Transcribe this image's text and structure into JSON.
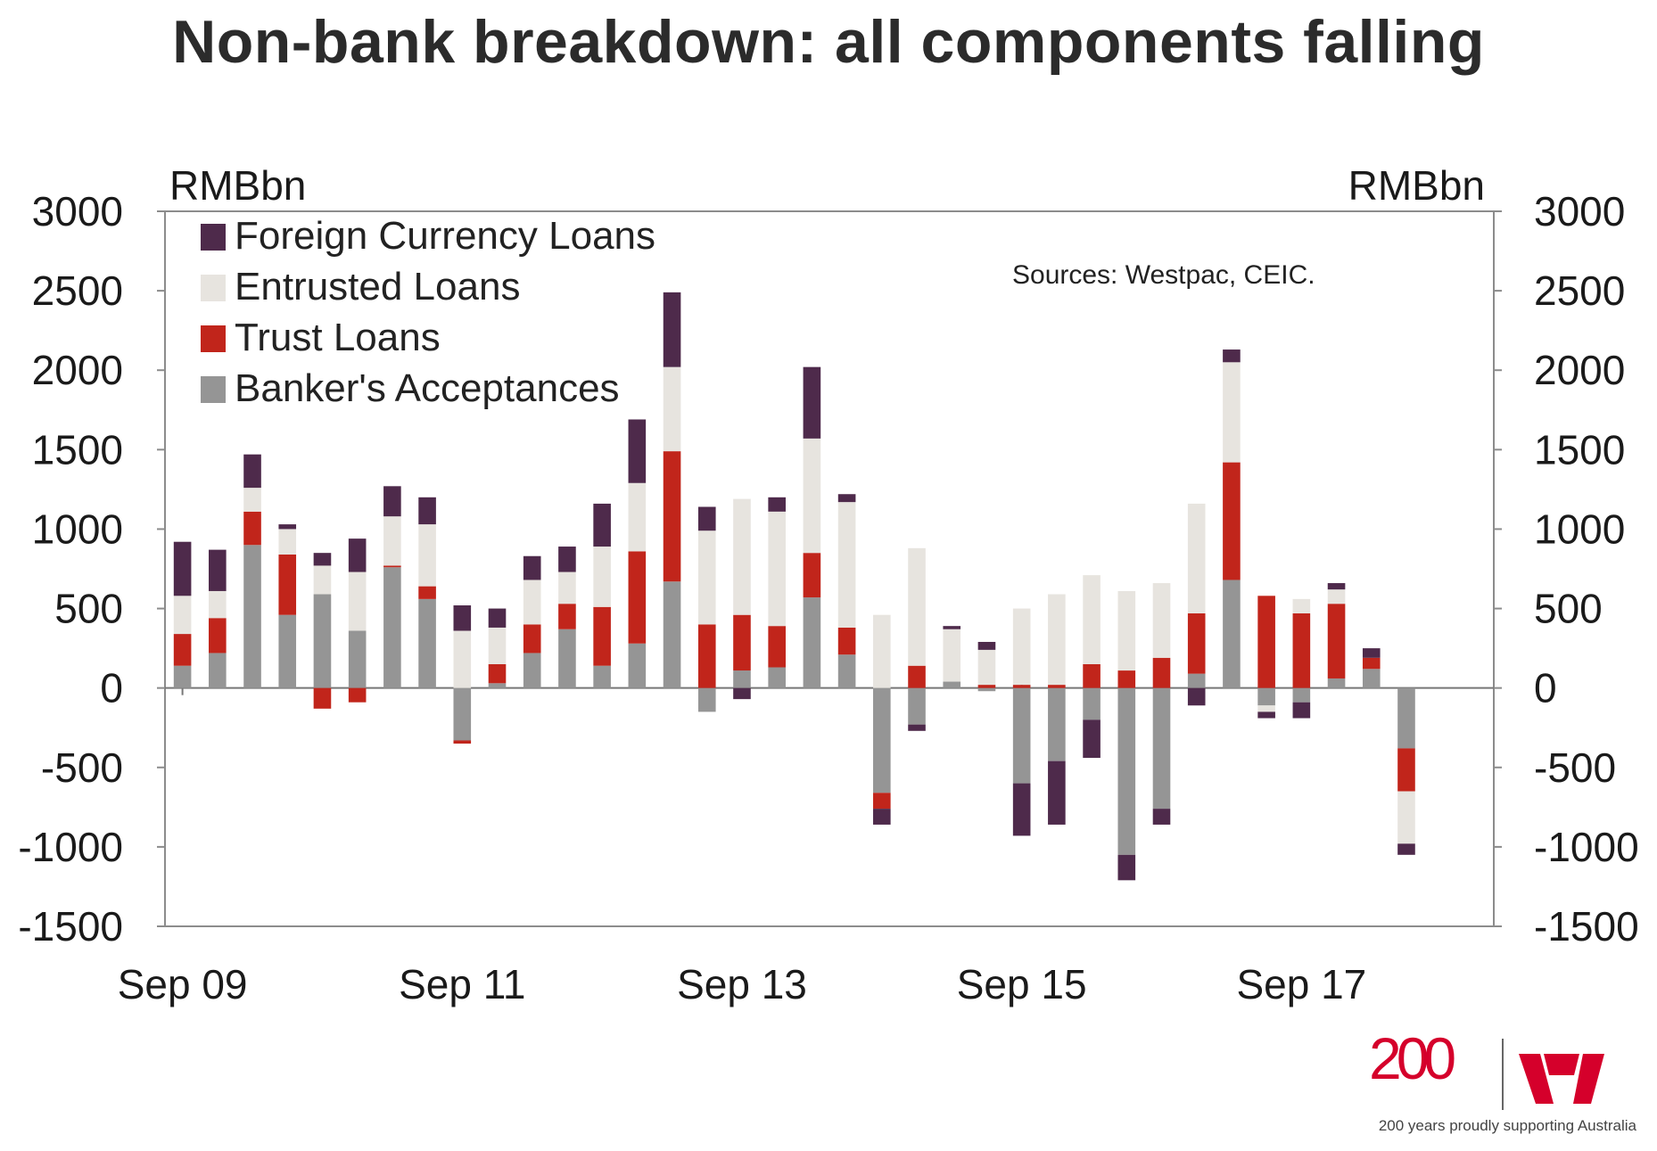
{
  "title": "Non-bank breakdown: all components falling",
  "chart_data": {
    "type": "bar",
    "stacked": true,
    "ylabel_left": "RMBbn",
    "ylabel_right": "RMBbn",
    "ylim": [
      -1500,
      3000
    ],
    "yticks": [
      3000,
      2500,
      2000,
      1500,
      1000,
      500,
      0,
      -500,
      -1000,
      -1500
    ],
    "xtick_labels": [
      "Sep 09",
      "Sep 11",
      "Sep 13",
      "Sep 15",
      "Sep 17"
    ],
    "categories": [
      "Sep 09",
      "Dec 09",
      "Mar 10",
      "Jun 10",
      "Sep 10",
      "Dec 10",
      "Mar 11",
      "Jun 11",
      "Sep 11",
      "Dec 11",
      "Mar 12",
      "Jun 12",
      "Sep 12",
      "Dec 12",
      "Mar 13",
      "Jun 13",
      "Sep 13",
      "Dec 13",
      "Mar 14",
      "Jun 14",
      "Sep 14",
      "Dec 14",
      "Mar 15",
      "Jun 15",
      "Sep 15",
      "Dec 15",
      "Mar 16",
      "Jun 16",
      "Sep 16",
      "Dec 16",
      "Mar 17",
      "Jun 17",
      "Sep 17",
      "Dec 17",
      "Mar 18",
      "Jun 18",
      "Sep 18",
      "Dec 18"
    ],
    "legend_position": "top-left",
    "annotation": "Sources: Westpac, CEIC.",
    "series": [
      {
        "name": "Banker's Acceptances",
        "color": "#959595",
        "values": [
          140,
          220,
          900,
          460,
          590,
          360,
          760,
          560,
          -330,
          30,
          220,
          370,
          140,
          280,
          670,
          -150,
          110,
          130,
          570,
          210,
          -660,
          -230,
          40,
          -20,
          -600,
          -460,
          -200,
          -1050,
          -760,
          90,
          680,
          -110,
          -90,
          60,
          120,
          -380,
          0,
          0
        ]
      },
      {
        "name": "Trust Loans",
        "color": "#c1251b",
        "values": [
          200,
          220,
          210,
          380,
          -130,
          -90,
          10,
          80,
          -20,
          120,
          180,
          160,
          370,
          580,
          820,
          400,
          350,
          260,
          280,
          170,
          -100,
          140,
          0,
          20,
          20,
          20,
          150,
          110,
          190,
          380,
          740,
          580,
          470,
          470,
          70,
          -270,
          0,
          0
        ]
      },
      {
        "name": "Entrusted Loans",
        "color": "#e7e4df",
        "values": [
          240,
          170,
          150,
          160,
          180,
          370,
          310,
          390,
          360,
          230,
          280,
          200,
          380,
          430,
          530,
          590,
          730,
          720,
          720,
          790,
          460,
          740,
          330,
          220,
          480,
          570,
          560,
          500,
          470,
          690,
          630,
          -40,
          90,
          90,
          0,
          -330,
          0,
          0
        ]
      },
      {
        "name": "Foreign Currency Loans",
        "color": "#4e2a4b",
        "values": [
          340,
          260,
          210,
          30,
          80,
          210,
          190,
          170,
          160,
          120,
          150,
          160,
          270,
          400,
          470,
          150,
          -70,
          90,
          450,
          50,
          -100,
          -40,
          20,
          50,
          -330,
          -400,
          -240,
          -160,
          -100,
          -110,
          80,
          -40,
          -100,
          40,
          60,
          -70,
          0,
          0
        ]
      }
    ]
  },
  "logo": {
    "number": "200",
    "tagline": "200 years proudly supporting Australia",
    "brand_color": "#d5002b"
  }
}
